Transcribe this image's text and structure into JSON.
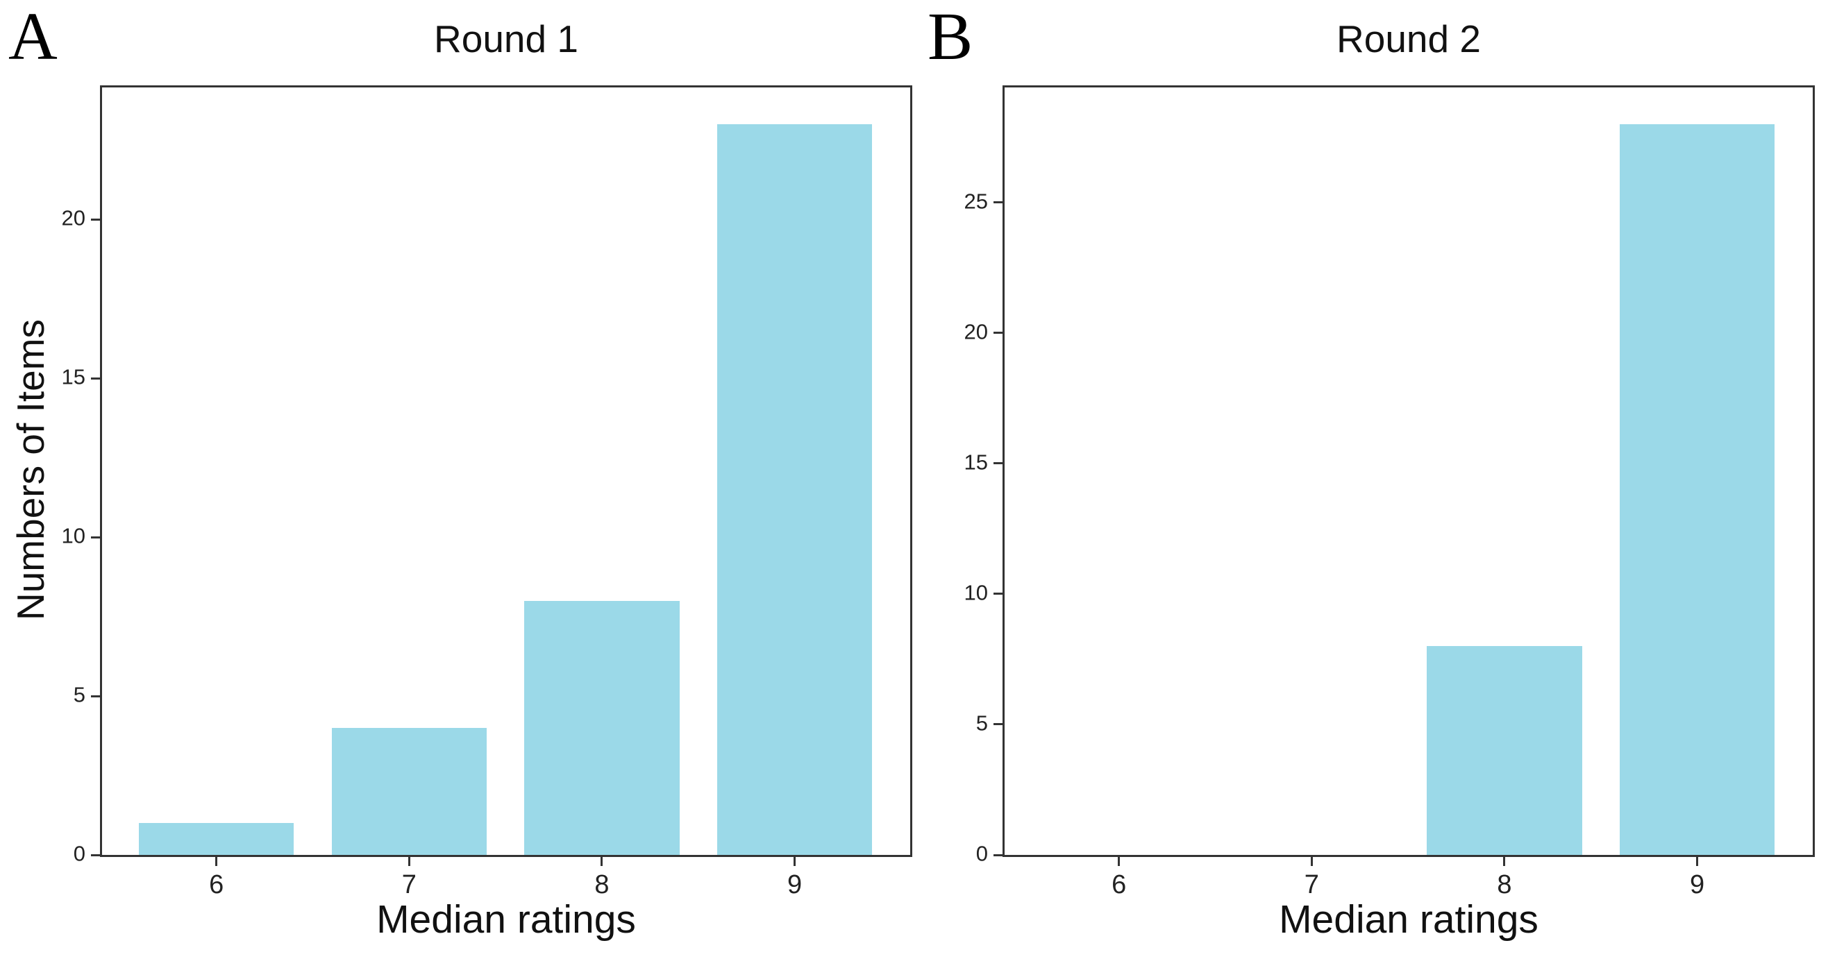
{
  "styles": {
    "bar_color": "#9bd9e8",
    "spine_color": "#333333",
    "tick_label_color": "#222222",
    "text_color": "#111111",
    "background_color": "#ffffff"
  },
  "chart_data": [
    {
      "type": "bar",
      "panel_label": "A",
      "title": "Round 1",
      "xlabel": "Median ratings",
      "ylabel": "Numbers of Items",
      "categories": [
        "6",
        "7",
        "8",
        "9"
      ],
      "values": [
        1,
        4,
        8,
        23
      ],
      "yticks": [
        0,
        5,
        10,
        15,
        20
      ],
      "ylim": [
        0,
        24.15
      ],
      "grid": false,
      "legend": null
    },
    {
      "type": "bar",
      "panel_label": "B",
      "title": "Round 2",
      "xlabel": "Median ratings",
      "ylabel": "",
      "categories": [
        "6",
        "7",
        "8",
        "9"
      ],
      "values": [
        0,
        0,
        8,
        28
      ],
      "yticks": [
        0,
        5,
        10,
        15,
        20,
        25
      ],
      "ylim": [
        0,
        29.4
      ],
      "grid": false,
      "legend": null
    }
  ]
}
